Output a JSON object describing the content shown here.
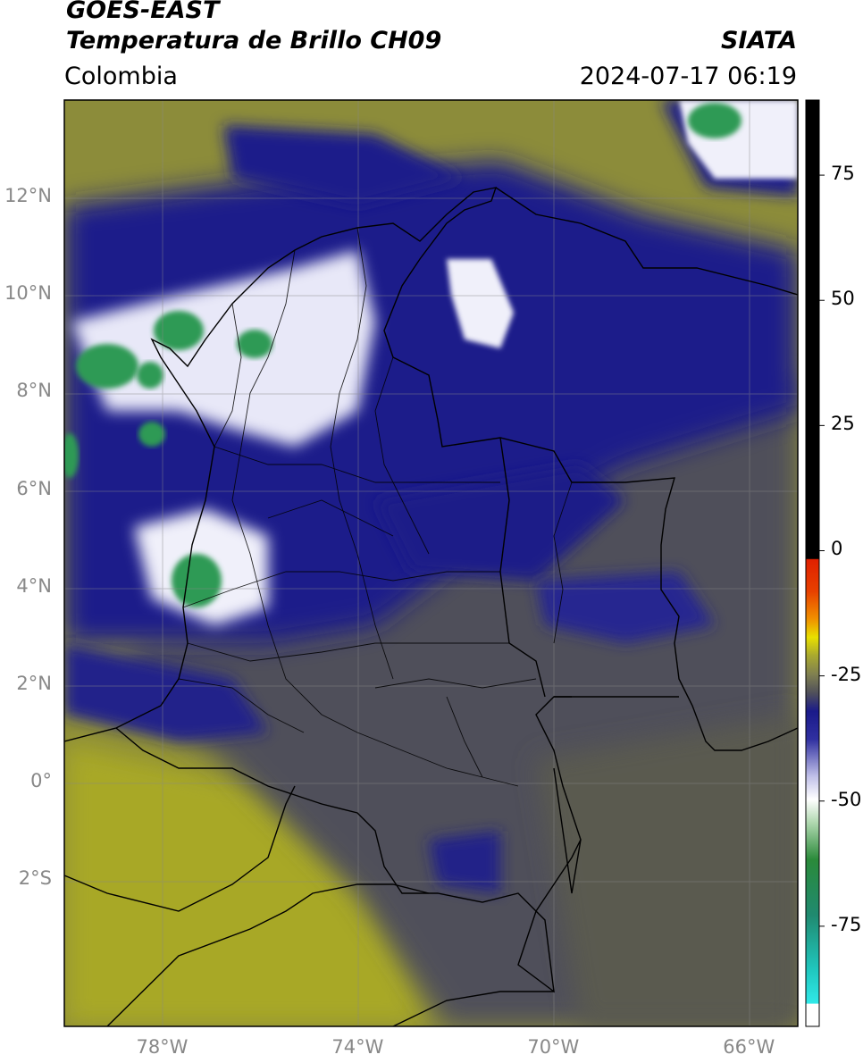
{
  "header": {
    "satellite": "GOES-EAST",
    "product": "Temperatura de Brillo CH09",
    "region": "Colombia",
    "agency": "SIATA",
    "datetime": "2024-07-17 06:19"
  },
  "map": {
    "extent": {
      "lon_min": -80,
      "lon_max": -65,
      "lat_min": -5,
      "lat_max": 14
    },
    "lat_labels": [
      "12°N",
      "10°N",
      "8°N",
      "6°N",
      "4°N",
      "2°N",
      "0°",
      "2°S"
    ],
    "lat_values": [
      12,
      10,
      8,
      6,
      4,
      2,
      0,
      -2
    ],
    "lon_labels": [
      "78°W",
      "74°W",
      "70°W",
      "66°W"
    ],
    "lon_values": [
      -78,
      -74,
      -70,
      -66
    ],
    "gridlines": true
  },
  "colorbar": {
    "range": [
      -95,
      90
    ],
    "tick_labels": [
      "75",
      "50",
      "25",
      "0",
      "-25",
      "-50",
      "-75"
    ],
    "tick_values": [
      75,
      50,
      25,
      0,
      -25,
      -50,
      -75
    ],
    "colors": {
      "warm_black": "#000000",
      "red": "#e02000",
      "orange": "#f08000",
      "yellow": "#e8e000",
      "olive": "#a8a830",
      "gray": "#50505a",
      "navy": "#1a1a8a",
      "white": "#ffffff",
      "green": "#2a8a3a",
      "teal": "#20c8c0",
      "cyan": "#30e8e8"
    }
  }
}
